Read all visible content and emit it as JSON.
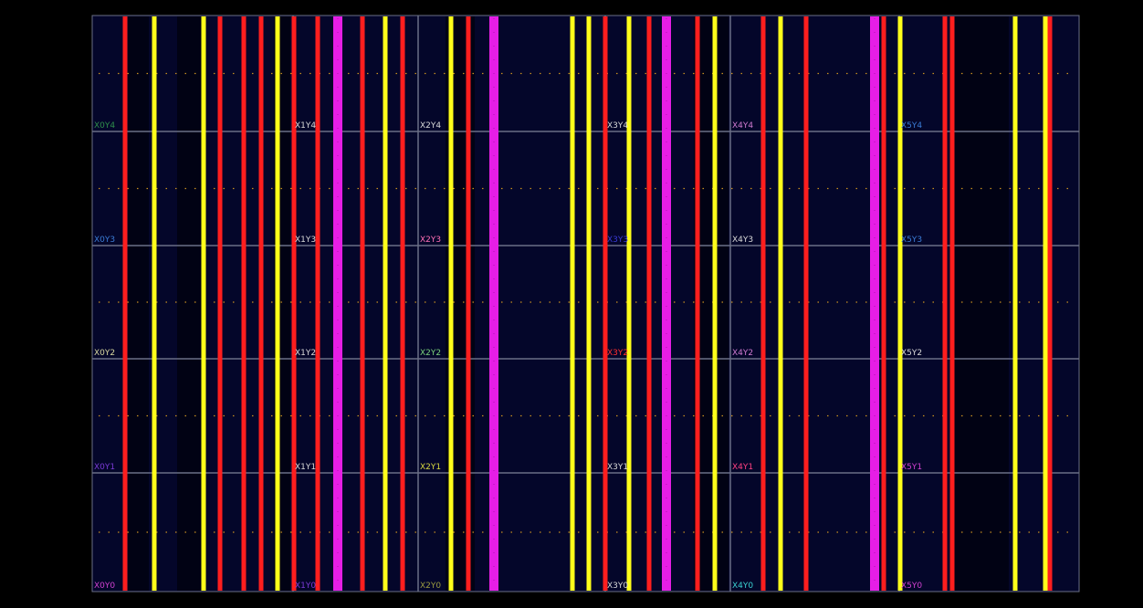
{
  "colors": {
    "background": "#000000",
    "fabric": "#04062a",
    "outline": "#6a6f86",
    "route_red": "#ff1e1e",
    "route_yellow": "#ffff1a",
    "route_magenta": "#e61ee6"
  },
  "region_labels": [
    [
      {
        "name": "X0Y4",
        "color": "#2e8f4a"
      },
      {
        "name": "X1Y4",
        "color": "#d8d8d8"
      },
      {
        "name": "X2Y4",
        "color": "#d8d8d8"
      },
      {
        "name": "X3Y4",
        "color": "#d8d8d8"
      },
      {
        "name": "X4Y4",
        "color": "#d07ad0"
      },
      {
        "name": "X5Y4",
        "color": "#3a7bd5"
      }
    ],
    [
      {
        "name": "X0Y3",
        "color": "#3a7bd5"
      },
      {
        "name": "X1Y3",
        "color": "#d8d8d8"
      },
      {
        "name": "X2Y3",
        "color": "#ff6fb5"
      },
      {
        "name": "X3Y3",
        "color": "#3a3ad5"
      },
      {
        "name": "X4Y3",
        "color": "#d8d8d8"
      },
      {
        "name": "X5Y3",
        "color": "#3a7bd5"
      }
    ],
    [
      {
        "name": "X0Y2",
        "color": "#d8d8a0"
      },
      {
        "name": "X1Y2",
        "color": "#d8d8d8"
      },
      {
        "name": "X2Y2",
        "color": "#7ad07a"
      },
      {
        "name": "X3Y2",
        "color": "#ff3030"
      },
      {
        "name": "X4Y2",
        "color": "#d07ad0"
      },
      {
        "name": "X5Y2",
        "color": "#d8d8d8"
      }
    ],
    [
      {
        "name": "X0Y1",
        "color": "#7a3ad5"
      },
      {
        "name": "X1Y1",
        "color": "#d8d8d8"
      },
      {
        "name": "X2Y1",
        "color": "#d8d840"
      },
      {
        "name": "X3Y1",
        "color": "#d8d8d8"
      },
      {
        "name": "X4Y1",
        "color": "#ff4080"
      },
      {
        "name": "X5Y1",
        "color": "#d040d0"
      }
    ],
    [
      {
        "name": "X0Y0",
        "color": "#d040d0"
      },
      {
        "name": "X1Y0",
        "color": "#7a3ad5"
      },
      {
        "name": "X2Y0",
        "color": "#9a9a40"
      },
      {
        "name": "X3Y0",
        "color": "#d8d8d8"
      },
      {
        "name": "X4Y0",
        "color": "#3ad0d0"
      },
      {
        "name": "X5Y0",
        "color": "#d040d0"
      }
    ]
  ],
  "routes": [
    {
      "color": "red"
    },
    {
      "color": "yellow"
    },
    {
      "color": "yellow"
    },
    {
      "color": "red"
    },
    {
      "color": "red"
    },
    {
      "color": "red"
    },
    {
      "color": "yellow"
    },
    {
      "color": "red"
    },
    {
      "color": "red"
    },
    {
      "color": "magenta"
    },
    {
      "color": "red"
    },
    {
      "color": "yellow"
    },
    {
      "color": "red"
    },
    {
      "color": "yellow"
    },
    {
      "color": "red"
    },
    {
      "color": "magenta"
    },
    {
      "color": "yellow"
    },
    {
      "color": "yellow"
    },
    {
      "color": "red"
    },
    {
      "color": "yellow"
    },
    {
      "color": "red"
    },
    {
      "color": "magenta"
    },
    {
      "color": "red"
    },
    {
      "color": "yellow"
    },
    {
      "color": "red"
    },
    {
      "color": "yellow"
    },
    {
      "color": "red"
    },
    {
      "color": "magenta"
    },
    {
      "color": "red"
    },
    {
      "color": "yellow"
    },
    {
      "color": "red"
    },
    {
      "color": "red"
    },
    {
      "color": "yellow"
    },
    {
      "color": "yellow"
    },
    {
      "color": "red"
    }
  ]
}
